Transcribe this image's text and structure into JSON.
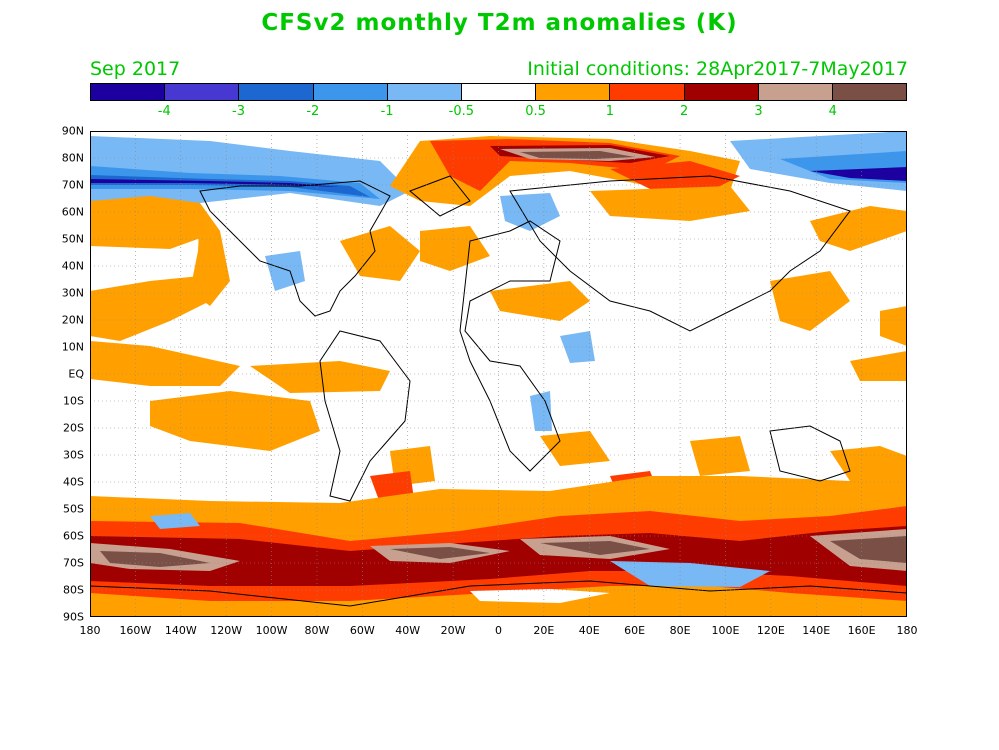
{
  "header": {
    "title": "CFSv2 monthly T2m anomalies (K)",
    "month": "Sep 2017",
    "initial_conditions": "Initial conditions: 28Apr2017-7May2017"
  },
  "colorbar": {
    "colors": [
      "#1c00a0",
      "#4638d0",
      "#1c68d0",
      "#3c96ec",
      "#78b8f4",
      "#ffffff",
      "#ffa000",
      "#ff3c00",
      "#a00000",
      "#c8a090",
      "#7a5046"
    ],
    "labels": [
      "-4",
      "-3",
      "-2",
      "-1",
      "-0.5",
      "0.5",
      "1",
      "2",
      "3",
      "4"
    ]
  },
  "axes": {
    "lat_labels": [
      "90N",
      "80N",
      "70N",
      "60N",
      "50N",
      "40N",
      "30N",
      "20N",
      "10N",
      "EQ",
      "10S",
      "20S",
      "30S",
      "40S",
      "50S",
      "60S",
      "70S",
      "80S",
      "90S"
    ],
    "lon_labels": [
      "180",
      "160W",
      "140W",
      "120W",
      "100W",
      "80W",
      "60W",
      "40W",
      "20W",
      "0",
      "20E",
      "40E",
      "60E",
      "80E",
      "100E",
      "120E",
      "140E",
      "160E",
      "180"
    ]
  }
}
